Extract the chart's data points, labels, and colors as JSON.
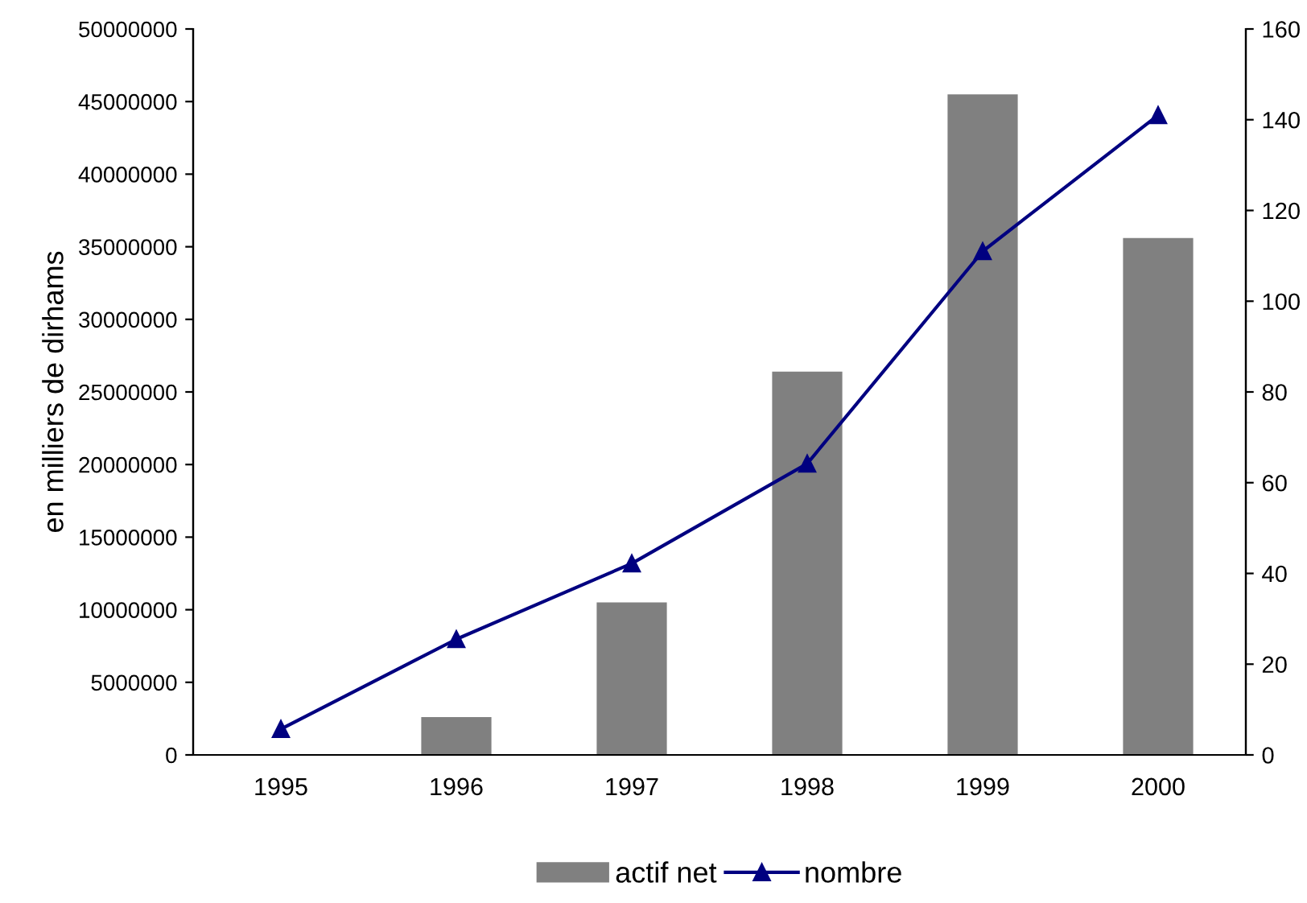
{
  "chart_data": {
    "type": "bar",
    "ylabel": "en milliers de dirhams",
    "categories": [
      "1995",
      "1996",
      "1997",
      "1998",
      "1999",
      "2000"
    ],
    "series": [
      {
        "name": "actif net",
        "color": "#808080",
        "values": [
          0,
          2600000,
          10500000,
          26400000,
          45500000,
          35600000
        ]
      },
      {
        "name": "nombre",
        "type": "line",
        "axis": "y2",
        "color": "#000080",
        "marker": "triangle",
        "values": [
          5.7,
          25.5,
          42.2,
          64.2,
          111,
          141
        ]
      }
    ],
    "ylim": [
      0,
      50000000
    ],
    "yticks": [
      0,
      5000000,
      10000000,
      15000000,
      20000000,
      25000000,
      30000000,
      35000000,
      40000000,
      45000000,
      50000000
    ],
    "y2lim": [
      0,
      160
    ],
    "y2ticks": [
      0,
      20,
      40,
      60,
      80,
      100,
      120,
      140,
      160
    ],
    "grid": false,
    "legend": "bottom"
  }
}
